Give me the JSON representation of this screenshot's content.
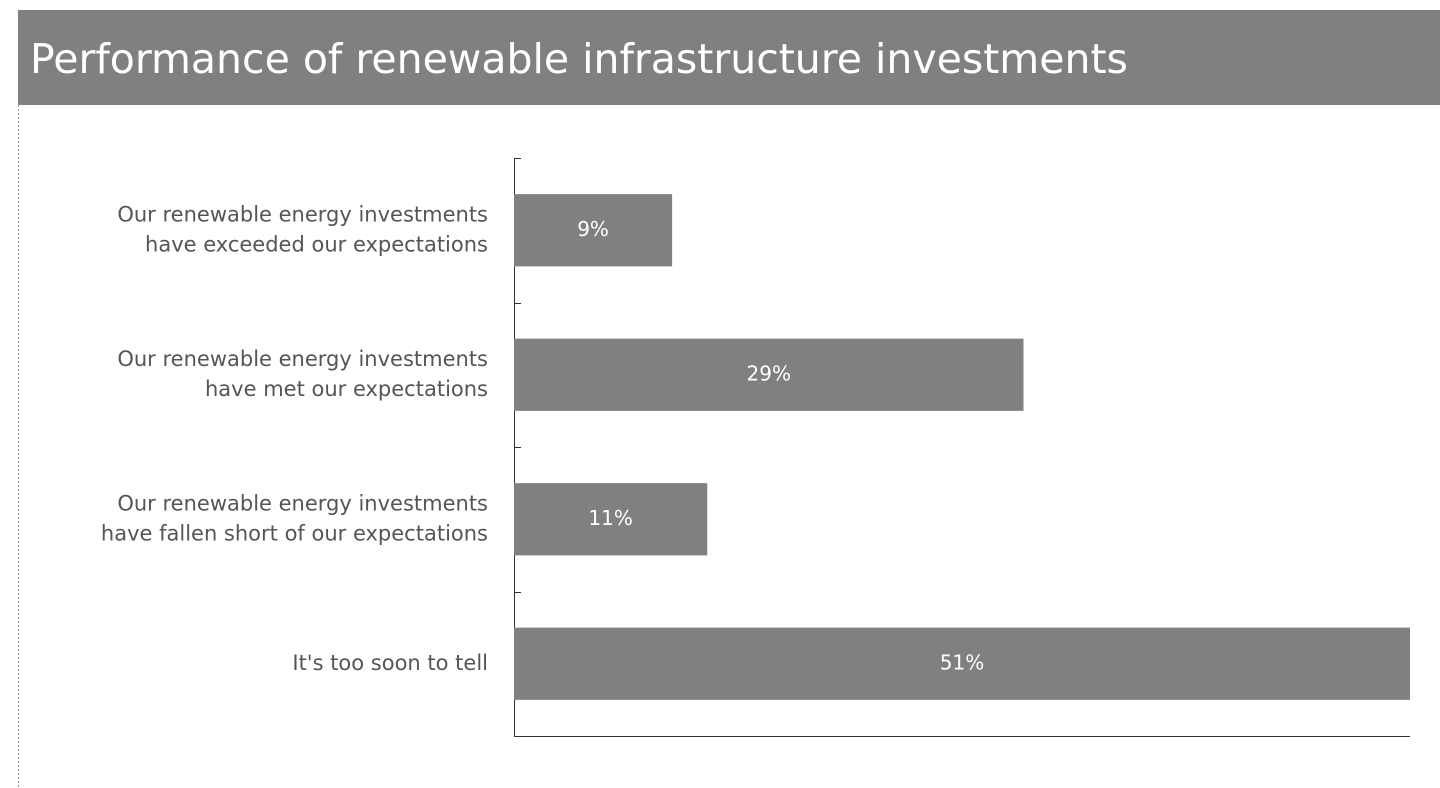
{
  "chart_data": {
    "type": "bar",
    "orientation": "horizontal",
    "title": "Performance of renewable infrastructure investments",
    "categories": [
      "Our renewable energy investments\nhave exceeded our expectations",
      "Our renewable energy investments\nhave met our expectations",
      "Our renewable energy investments\nhave fallen short of our expectations",
      "It's too soon to tell"
    ],
    "values": [
      9,
      29,
      11,
      51
    ],
    "value_labels": [
      "9%",
      "29%",
      "11%",
      "51%"
    ],
    "color": "#808080",
    "xlim": [
      0,
      51
    ]
  }
}
